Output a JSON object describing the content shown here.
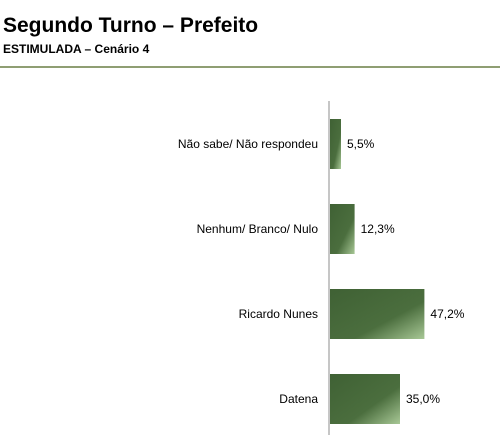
{
  "header": {
    "title": "Segundo Turno – Prefeito",
    "subtitle": "ESTIMULADA – Cenário 4"
  },
  "colors": {
    "bar_dark": "#3f6134",
    "bar_light": "#a8c896",
    "axis": "#8c8c8c",
    "rule": "#8f9e73"
  },
  "chart_data": {
    "type": "bar",
    "orientation": "horizontal",
    "title": "Segundo Turno – Prefeito",
    "subtitle": "ESTIMULADA – Cenário 4",
    "categories": [
      "Não sabe/ Não respondeu",
      "Nenhum/ Branco/ Nulo",
      "Ricardo Nunes",
      "Datena"
    ],
    "values": [
      5.5,
      12.3,
      47.2,
      35.0
    ],
    "value_labels": [
      "5,5%",
      "12,3%",
      "47,2%",
      "35,0%"
    ],
    "unit": "%",
    "xlim": [
      0,
      100
    ],
    "grid": false,
    "legend": "none"
  }
}
